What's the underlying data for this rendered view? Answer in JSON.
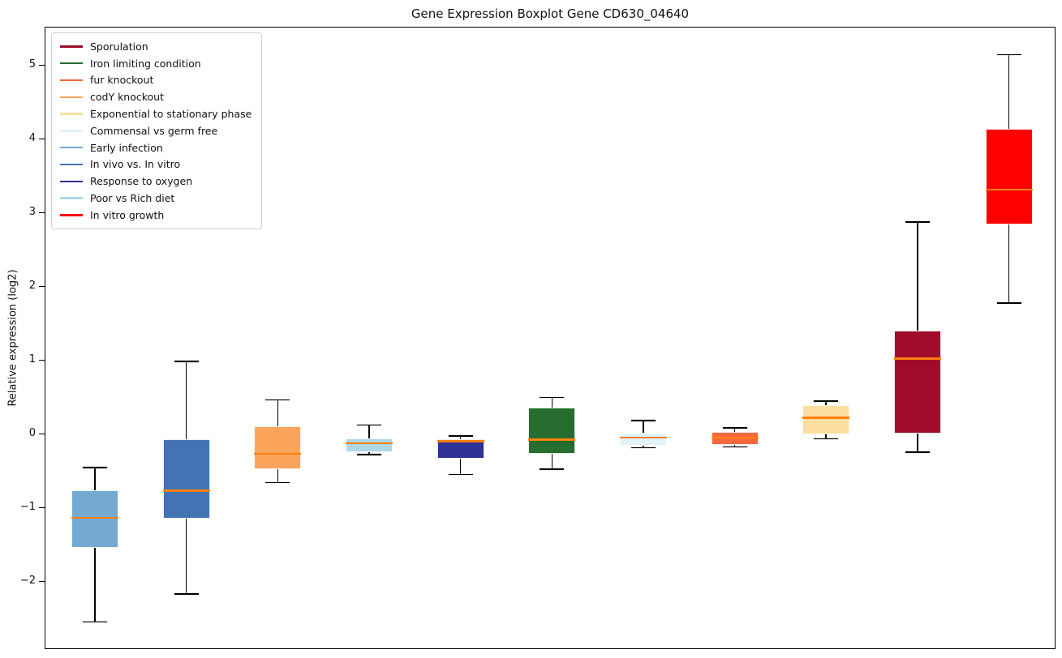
{
  "title_note": "static matplotlib-style chart, no interactive widgets visible",
  "colors": {
    "median_line": "#ff7f0e",
    "axis": "#000000",
    "background": "#ffffff",
    "legend_border": "#d0d0d0"
  },
  "chart_data": {
    "type": "boxplot",
    "title": "Gene Expression Boxplot Gene CD630_04640",
    "xlabel": "",
    "ylabel": "Relative expression (log2)",
    "ylim": [
      -2.92,
      5.52
    ],
    "yticks": [
      5,
      4,
      3,
      2,
      1,
      0,
      -1,
      -2
    ],
    "ytick_labels": [
      "5",
      "4",
      "3",
      "2",
      "1",
      "0",
      "−1",
      "−2"
    ],
    "xtick_labels": [],
    "grid": false,
    "legend_position": "upper left",
    "legend": [
      {
        "label": "Sporulation",
        "color": "#a00d2a"
      },
      {
        "label": "Iron limiting condition",
        "color": "#266d2f"
      },
      {
        "label": "fur knockout",
        "color": "#f4683c"
      },
      {
        "label": "codY knockout",
        "color": "#fba55c"
      },
      {
        "label": "Exponential to stationary phase",
        "color": "#fcdf9e"
      },
      {
        "label": "Commensal vs germ free",
        "color": "#e1f3f9"
      },
      {
        "label": "Early infection",
        "color": "#74aad2"
      },
      {
        "label": "In vivo vs. In vitro",
        "color": "#4473b4"
      },
      {
        "label": "Response to oxygen",
        "color": "#2e3093"
      },
      {
        "label": "Poor vs Rich diet",
        "color": "#aed8e6"
      },
      {
        "label": "In vitro growth",
        "color": "#ff0000"
      }
    ],
    "series": [
      {
        "label": "Early infection",
        "color": "#74aad2",
        "whisker_low": -2.55,
        "q1": -1.55,
        "median": -1.14,
        "q3": -0.77,
        "whisker_high": -0.46
      },
      {
        "label": "In vivo vs. In vitro",
        "color": "#4473b4",
        "whisker_low": -2.17,
        "q1": -1.15,
        "median": -0.77,
        "q3": -0.07,
        "whisker_high": 0.98
      },
      {
        "label": "codY knockout",
        "color": "#fba55c",
        "whisker_low": -0.66,
        "q1": -0.48,
        "median": -0.27,
        "q3": 0.1,
        "whisker_high": 0.46
      },
      {
        "label": "Poor vs Rich diet",
        "color": "#aed8e6",
        "whisker_low": -0.28,
        "q1": -0.25,
        "median": -0.13,
        "q3": -0.06,
        "whisker_high": 0.12
      },
      {
        "label": "Response to oxygen",
        "color": "#2e3093",
        "whisker_low": -0.55,
        "q1": -0.34,
        "median": -0.1,
        "q3": -0.07,
        "whisker_high": -0.03
      },
      {
        "label": "Iron limiting condition",
        "color": "#266d2f",
        "whisker_low": -0.48,
        "q1": -0.27,
        "median": -0.08,
        "q3": 0.35,
        "whisker_high": 0.49
      },
      {
        "label": "Commensal vs germ free",
        "color": "#e1f3f9",
        "whisker_low": -0.19,
        "q1": -0.16,
        "median": -0.05,
        "q3": 0.01,
        "whisker_high": 0.18
      },
      {
        "label": "fur knockout",
        "color": "#f4683c",
        "whisker_low": -0.18,
        "q1": -0.15,
        "median": -0.05,
        "q3": 0.02,
        "whisker_high": 0.08
      },
      {
        "label": "Exponential to stationary phase",
        "color": "#fcdf9e",
        "whisker_low": -0.07,
        "q1": -0.01,
        "median": 0.22,
        "q3": 0.39,
        "whisker_high": 0.44
      },
      {
        "label": "Sporulation",
        "color": "#a00d2a",
        "whisker_low": -0.25,
        "q1": 0.0,
        "median": 1.02,
        "q3": 1.4,
        "whisker_high": 2.87
      },
      {
        "label": "In vitro growth",
        "color": "#ff0000",
        "whisker_low": 1.77,
        "q1": 2.84,
        "median": 3.31,
        "q3": 4.13,
        "whisker_high": 5.14
      }
    ]
  }
}
